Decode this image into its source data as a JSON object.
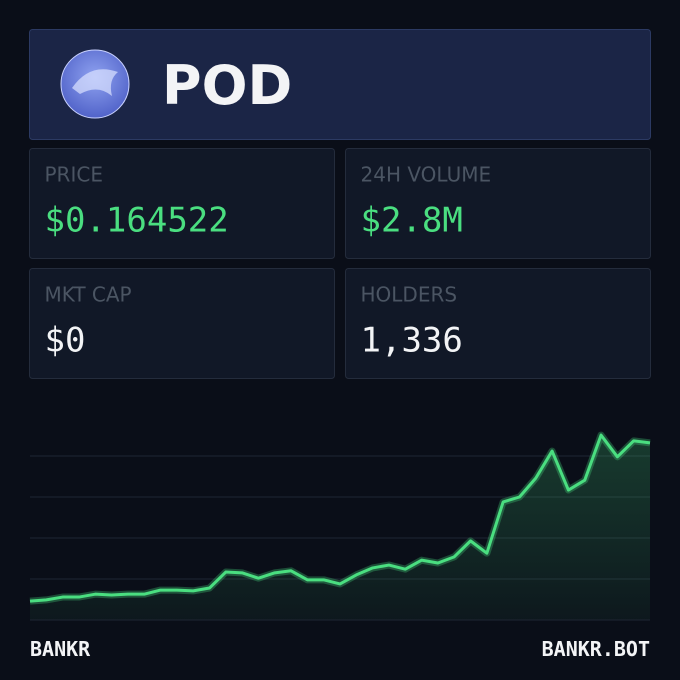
{
  "header": {
    "title": "POD"
  },
  "stats": [
    {
      "label": "PRICE",
      "value": "$0.164522",
      "color": "#4ade80"
    },
    {
      "label": "24H VOLUME",
      "value": "$2.8M",
      "color": "#4ade80"
    },
    {
      "label": "MKT CAP",
      "value": "$0",
      "color": "#f3f4f6"
    },
    {
      "label": "HOLDERS",
      "value": "1,336",
      "color": "#f3f4f6"
    }
  ],
  "chart_data": {
    "type": "line",
    "color": "#4ade80",
    "ylim": [
      0,
      5
    ],
    "yticks": [
      1,
      2,
      3,
      4
    ],
    "grid": true,
    "values": [
      0.46,
      0.49,
      0.56,
      0.56,
      0.63,
      0.61,
      0.63,
      0.63,
      0.73,
      0.73,
      0.71,
      0.78,
      1.17,
      1.15,
      1.02,
      1.15,
      1.2,
      0.98,
      0.98,
      0.88,
      1.1,
      1.27,
      1.34,
      1.24,
      1.46,
      1.39,
      1.54,
      1.93,
      1.63,
      2.88,
      3.0,
      3.46,
      4.12,
      3.17,
      3.41,
      4.51,
      3.98,
      4.37,
      4.32
    ]
  },
  "footer": {
    "left": "BANKR",
    "right": "BANKR.BOT"
  }
}
